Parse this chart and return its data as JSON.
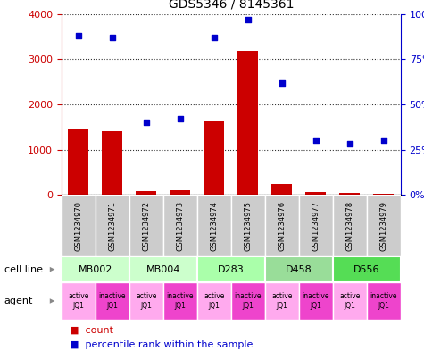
{
  "title": "GDS5346 / 8145361",
  "samples": [
    "GSM1234970",
    "GSM1234971",
    "GSM1234972",
    "GSM1234973",
    "GSM1234974",
    "GSM1234975",
    "GSM1234976",
    "GSM1234977",
    "GSM1234978",
    "GSM1234979"
  ],
  "bar_values": [
    1470,
    1400,
    80,
    100,
    1620,
    3180,
    230,
    60,
    50,
    30
  ],
  "scatter_values": [
    88,
    87,
    40,
    42,
    87,
    97,
    62,
    30,
    28,
    30
  ],
  "bar_color": "#cc0000",
  "scatter_color": "#0000cc",
  "ylim_left": [
    0,
    4000
  ],
  "ylim_right": [
    0,
    100
  ],
  "yticks_left": [
    0,
    1000,
    2000,
    3000,
    4000
  ],
  "ytick_labels_left": [
    "0",
    "1000",
    "2000",
    "3000",
    "4000"
  ],
  "yticks_right": [
    0,
    25,
    50,
    75,
    100
  ],
  "ytick_labels_right": [
    "0%",
    "25%",
    "50%",
    "75%",
    "100%"
  ],
  "cell_lines": [
    {
      "label": "MB002",
      "span": [
        0,
        2
      ],
      "color": "#ccffcc"
    },
    {
      "label": "MB004",
      "span": [
        2,
        4
      ],
      "color": "#ccffcc"
    },
    {
      "label": "D283",
      "span": [
        4,
        6
      ],
      "color": "#aaffaa"
    },
    {
      "label": "D458",
      "span": [
        6,
        8
      ],
      "color": "#99dd99"
    },
    {
      "label": "D556",
      "span": [
        8,
        10
      ],
      "color": "#55dd55"
    }
  ],
  "agent_active_color": "#ffaaee",
  "agent_inactive_color": "#ee44cc",
  "sample_bg_color": "#cccccc",
  "cell_line_label": "cell line",
  "agent_label": "agent",
  "legend_bar_label": "count",
  "legend_scatter_label": "percentile rank within the sample",
  "fig_width": 4.75,
  "fig_height": 3.93,
  "dpi": 100
}
